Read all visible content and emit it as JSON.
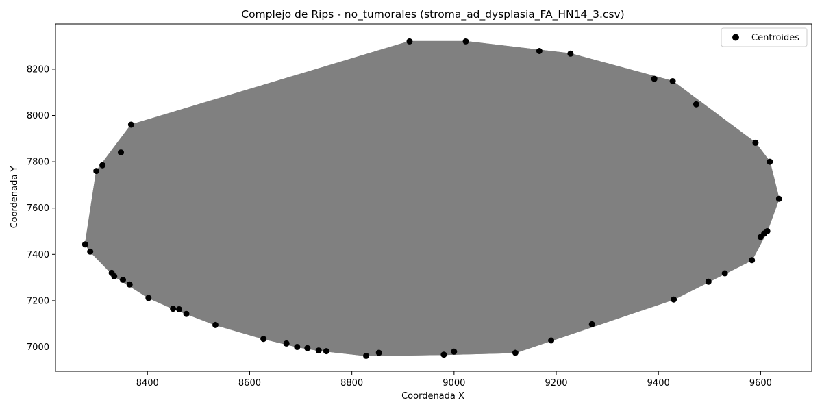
{
  "chart_data": {
    "type": "scatter",
    "title": "Complejo de Rips - no_tumorales (stroma_ad_dysplasia_FA_HN14_3.csv)",
    "xlabel": "Coordenada X",
    "ylabel": "Coordenada Y",
    "xlim": [
      8220,
      9700
    ],
    "ylim": [
      6895,
      8395
    ],
    "xticks": [
      8400,
      8600,
      8800,
      9000,
      9200,
      9400,
      9600
    ],
    "yticks": [
      7000,
      7200,
      7400,
      7600,
      7800,
      8000,
      8200
    ],
    "grid": false,
    "legend": {
      "placement": "top-right",
      "entries": [
        "Centroides"
      ]
    },
    "series": [
      {
        "name": "Centroides",
        "marker_color": "#000000",
        "x": [
          8278,
          8288,
          8300,
          8312,
          8330,
          8335,
          8348,
          8352,
          8365,
          8368,
          8402,
          8450,
          8462,
          8476,
          8533,
          8627,
          8672,
          8693,
          8713,
          8735,
          8750,
          8828,
          8853,
          8913,
          8980,
          9000,
          9023,
          9120,
          9167,
          9190,
          9228,
          9270,
          9392,
          9428,
          9430,
          9474,
          9498,
          9530,
          9583,
          9590,
          9600,
          9607,
          9613,
          9618,
          9636
        ],
        "y": [
          7443,
          7412,
          7760,
          7785,
          7320,
          7305,
          7840,
          7290,
          7270,
          7960,
          7212,
          7165,
          7163,
          7143,
          7095,
          7035,
          7015,
          7000,
          6995,
          6985,
          6982,
          6962,
          6975,
          8320,
          6967,
          6980,
          8320,
          6975,
          8278,
          7028,
          8267,
          7098,
          8158,
          8148,
          7205,
          8048,
          7282,
          7318,
          7375,
          7882,
          7475,
          7490,
          7500,
          7800,
          7640
        ]
      }
    ],
    "edges": {
      "color": "#808080",
      "description_note": ""
    }
  }
}
